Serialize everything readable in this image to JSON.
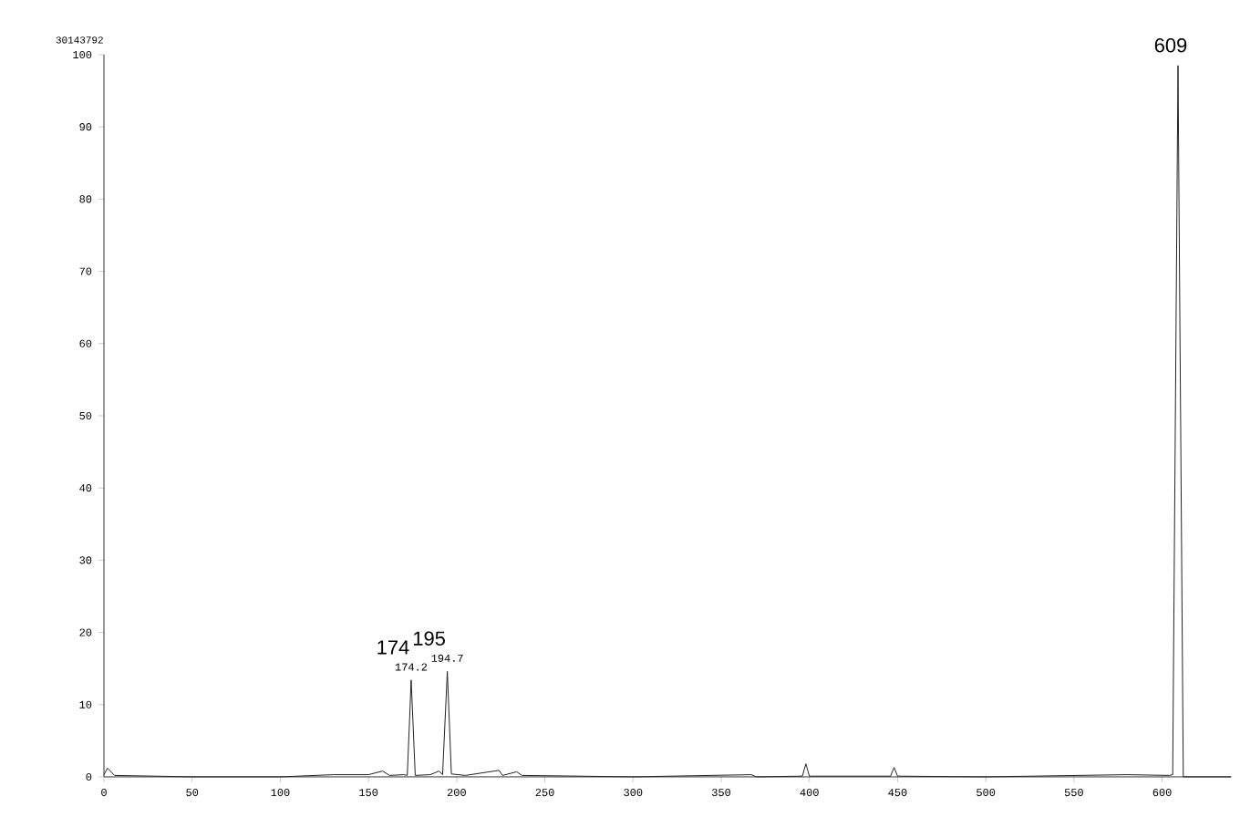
{
  "chart_data": {
    "type": "line",
    "x": [
      0,
      2,
      6,
      50,
      100,
      130,
      150,
      158,
      162,
      170,
      172,
      174.2,
      176.5,
      185,
      190,
      192,
      194.7,
      197,
      205,
      224,
      226,
      234,
      237,
      300,
      367,
      370,
      396,
      398,
      400,
      446,
      448,
      450,
      500,
      580,
      604,
      606,
      609,
      612,
      639
    ],
    "series": [
      {
        "color": "#222222",
        "values": [
          0.3,
          1.2,
          0.2,
          0,
          0,
          0.3,
          0.3,
          0.8,
          0.2,
          0.3,
          0.2,
          13.4,
          0.2,
          0.3,
          0.8,
          0.3,
          14.6,
          0.4,
          0.2,
          0.9,
          0.2,
          0.7,
          0.2,
          0,
          0.3,
          0,
          0.1,
          1.8,
          0.1,
          0.1,
          1.3,
          0.1,
          0,
          0.3,
          0.2,
          0.3,
          98.5,
          0,
          0
        ]
      }
    ],
    "annotations": [
      "30143792",
      {
        "text": "174.2",
        "x": 174.2,
        "y": 13.4
      },
      {
        "text": "174",
        "x": 174.2,
        "y": 13.4
      },
      {
        "text": "194.7",
        "x": 194.7,
        "y": 14.6
      },
      {
        "text": "195",
        "x": 194.7,
        "y": 14.6
      },
      {
        "text": "609",
        "x": 609,
        "y": 98.5
      }
    ],
    "xlim": [
      0,
      639
    ],
    "ylim": [
      0,
      100
    ],
    "xticks": [
      0,
      50,
      100,
      150,
      200,
      250,
      300,
      350,
      400,
      450,
      500,
      550,
      600
    ],
    "yticks": [
      0,
      10,
      20,
      30,
      40,
      50,
      60,
      70,
      80,
      90,
      100
    ],
    "grid": false,
    "marker": "none",
    "line_style": "solid"
  }
}
